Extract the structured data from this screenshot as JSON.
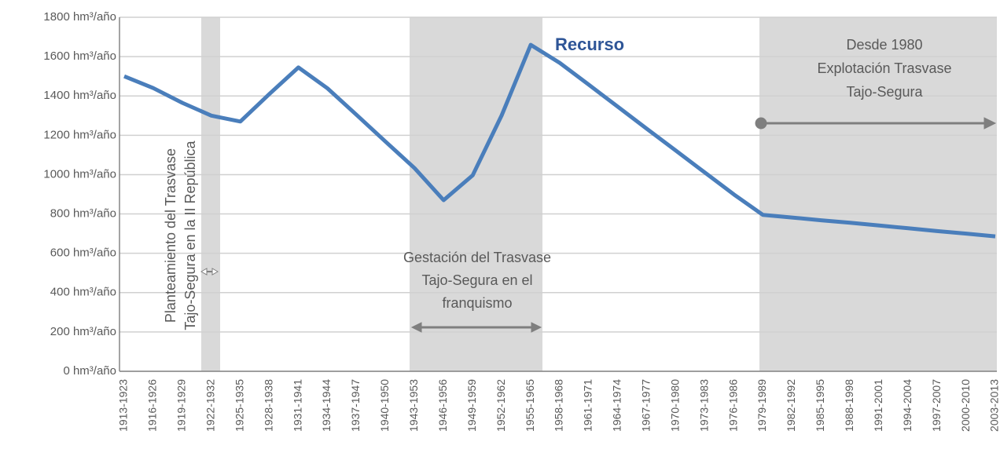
{
  "chart_data": {
    "type": "line",
    "categories": [
      "1913-1923",
      "1916-1926",
      "1919-1929",
      "1922-1932",
      "1925-1935",
      "1928-1938",
      "1931-1941",
      "1934-1944",
      "1937-1947",
      "1940-1950",
      "1943-1953",
      "1946-1956",
      "1949-1959",
      "1952-1962",
      "1955-1965",
      "1958-1968",
      "1961-1971",
      "1964-1974",
      "1967-1977",
      "1970-1980",
      "1973-1983",
      "1976-1986",
      "1979-1989",
      "1982-1992",
      "1985-1995",
      "1988-1998",
      "1991-2001",
      "1994-2004",
      "1997-2007",
      "2000-2010",
      "2003-2013"
    ],
    "series": [
      {
        "name": "Recurso",
        "color": "#4a7ebb",
        "values": [
          1500,
          1440,
          1365,
          1300,
          1270,
          1410,
          1545,
          1439,
          1304,
          1168,
          1033,
          870,
          996,
          1301,
          1660,
          1568,
          1457,
          1345,
          1233,
          1122,
          1010,
          899,
          795,
          782,
          768,
          755,
          741,
          727,
          713,
          700,
          686
        ]
      }
    ],
    "ylim": [
      0,
      1800
    ],
    "yticks": [
      {
        "value": 0,
        "label": "0 hm³/año"
      },
      {
        "value": 200,
        "label": "200 hm³/año"
      },
      {
        "value": 400,
        "label": "400 hm³/año"
      },
      {
        "value": 600,
        "label": "600 hm³/año"
      },
      {
        "value": 800,
        "label": "800 hm³/año"
      },
      {
        "value": 1000,
        "label": "1000 hm³/año"
      },
      {
        "value": 1200,
        "label": "1200 hm³/año"
      },
      {
        "value": 1400,
        "label": "1400 hm³/año"
      },
      {
        "value": 1600,
        "label": "1600 hm³/año"
      },
      {
        "value": 1800,
        "label": "1800 hm³/año"
      }
    ],
    "grid": true,
    "annotations": {
      "republica": [
        "Planteamiento del Trasvase",
        "Tajo-Segura en la II  República"
      ],
      "franquismo": [
        "Gestación del Trasvase",
        "Tajo-Segura en el",
        "franquismo"
      ],
      "explotacion": [
        "Desde 1980",
        "Explotación Trasvase",
        "Tajo-Segura"
      ]
    }
  }
}
